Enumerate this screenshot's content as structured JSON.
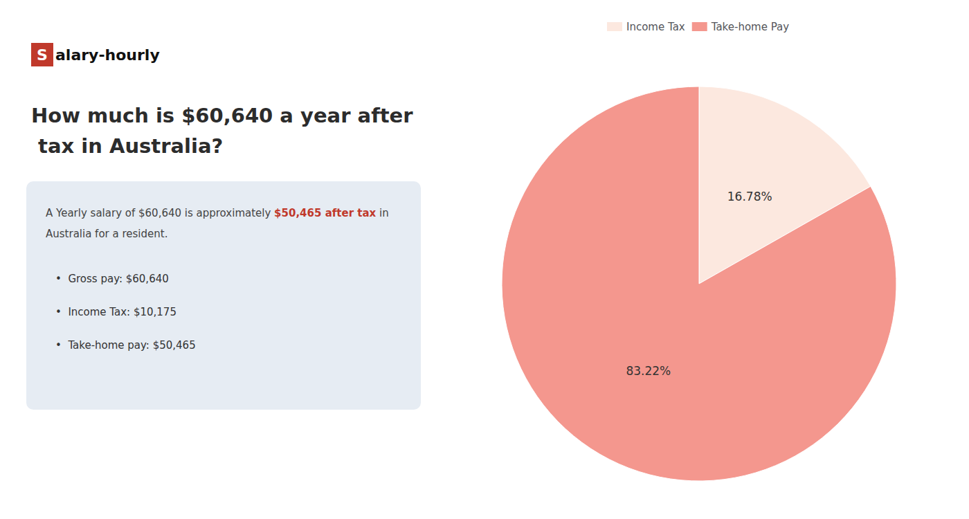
{
  "chart_data": {
    "type": "pie",
    "title": "How much is $60,640 a year after tax in Australia?",
    "annotations": [
      {
        "text": "S",
        "color": "#c0392b"
      },
      {
        "text": "alary-hourly"
      },
      {
        "text": "A Yearly salary of $60,640 is approximately "
      },
      {
        "text": "$50,465 after tax",
        "color": "#c0392b"
      },
      {
        "text": " in"
      },
      {
        "text": "Australia for a resident."
      },
      {
        "text": "•  Gross pay: $60,640"
      },
      {
        "text": "•  Income Tax: $10,175"
      },
      {
        "text": "•  Take-home pay: $50,465"
      }
    ],
    "categories": [
      "Income Tax",
      "Take-home Pay"
    ],
    "values": [
      16.78,
      83.22
    ],
    "value_labels": [
      "16.78%",
      "83.22%"
    ],
    "colors": [
      "#fce8df",
      "#f4978e"
    ],
    "data_labels": true,
    "legend": "top"
  }
}
